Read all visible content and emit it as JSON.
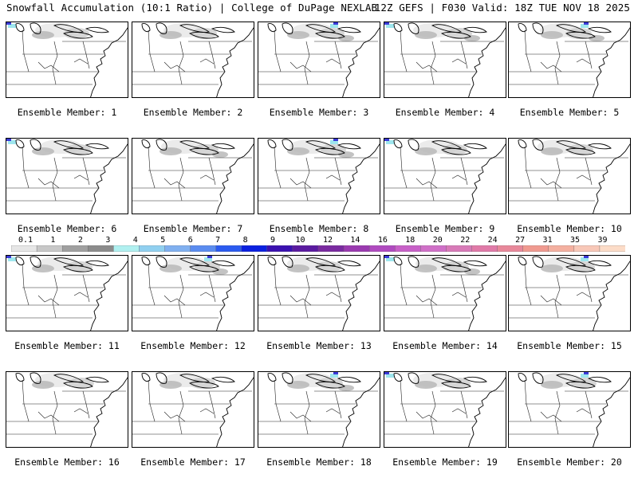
{
  "header": {
    "left_title": "Snowfall Accumulation (10:1 Ratio) | College of DuPage NEXLAB",
    "right_title": "12Z GEFS | F030 Valid: 18Z TUE NOV 18 2025"
  },
  "panels": [
    {
      "label": "Ensemble Member: 1",
      "snow": [
        {
          "region": "GL",
          "level": 1
        }
      ],
      "has_blue": true
    },
    {
      "label": "Ensemble Member: 2",
      "snow": [
        {
          "region": "GL",
          "level": 1
        }
      ],
      "has_blue": false
    },
    {
      "label": "Ensemble Member: 3",
      "snow": [
        {
          "region": "GL",
          "level": 2
        }
      ],
      "has_blue": true
    },
    {
      "label": "Ensemble Member: 4",
      "snow": [
        {
          "region": "GL",
          "level": 2
        }
      ],
      "has_blue": true
    },
    {
      "label": "Ensemble Member: 5",
      "snow": [
        {
          "region": "GL",
          "level": 3
        }
      ],
      "has_blue": true
    },
    {
      "label": "Ensemble Member: 6",
      "snow": [
        {
          "region": "GL",
          "level": 1
        }
      ],
      "has_blue": true
    },
    {
      "label": "Ensemble Member: 7",
      "snow": [
        {
          "region": "GL",
          "level": 2
        }
      ],
      "has_blue": false
    },
    {
      "label": "Ensemble Member: 8",
      "snow": [
        {
          "region": "GL",
          "level": 2
        }
      ],
      "has_blue": true
    },
    {
      "label": "Ensemble Member: 9",
      "snow": [
        {
          "region": "GL",
          "level": 1
        }
      ],
      "has_blue": true
    },
    {
      "label": "Ensemble Member: 10",
      "snow": [
        {
          "region": "GL",
          "level": 1
        }
      ],
      "has_blue": false
    },
    {
      "label": "Ensemble Member: 11",
      "snow": [
        {
          "region": "GL",
          "level": 1
        }
      ],
      "has_blue": true
    },
    {
      "label": "Ensemble Member: 12",
      "snow": [
        {
          "region": "GL",
          "level": 2
        }
      ],
      "has_blue": true
    },
    {
      "label": "Ensemble Member: 13",
      "snow": [
        {
          "region": "GL",
          "level": 1
        }
      ],
      "has_blue": false
    },
    {
      "label": "Ensemble Member: 14",
      "snow": [
        {
          "region": "GL",
          "level": 2
        }
      ],
      "has_blue": true
    },
    {
      "label": "Ensemble Member: 15",
      "snow": [
        {
          "region": "GL",
          "level": 1
        }
      ],
      "has_blue": true
    },
    {
      "label": "Ensemble Member: 16",
      "snow": [
        {
          "region": "GL",
          "level": 1
        }
      ],
      "has_blue": false
    },
    {
      "label": "Ensemble Member: 17",
      "snow": [
        {
          "region": "GL",
          "level": 1
        }
      ],
      "has_blue": false
    },
    {
      "label": "Ensemble Member: 18",
      "snow": [
        {
          "region": "GL",
          "level": 2
        }
      ],
      "has_blue": true
    },
    {
      "label": "Ensemble Member: 19",
      "snow": [
        {
          "region": "GL",
          "level": 1
        }
      ],
      "has_blue": true
    },
    {
      "label": "Ensemble Member: 20",
      "snow": [
        {
          "region": "GL",
          "level": 1
        }
      ],
      "has_blue": true
    }
  ],
  "colorbar": {
    "ticks": [
      "0.1",
      "1",
      "2",
      "3",
      "4",
      "5",
      "6",
      "7",
      "8",
      "9",
      "10",
      "12",
      "14",
      "16",
      "18",
      "20",
      "22",
      "24",
      "27",
      "31",
      "35",
      "39"
    ],
    "colors": [
      "#e6e6e6",
      "#c8c8c8",
      "#a0a0a0",
      "#8c8c8c",
      "#b0f0f0",
      "#90d0f0",
      "#80b0f0",
      "#5a8cf0",
      "#2a5af0",
      "#0a20e0",
      "#3a10b0",
      "#5a1aa0",
      "#7a2aa0",
      "#9a3ab0",
      "#b04ac0",
      "#c860c8",
      "#d070c8",
      "#d87ab8",
      "#e07aa8",
      "#e8889a",
      "#f09a90",
      "#f4b0a0",
      "#f8c8b8",
      "#fcdcc8"
    ]
  }
}
